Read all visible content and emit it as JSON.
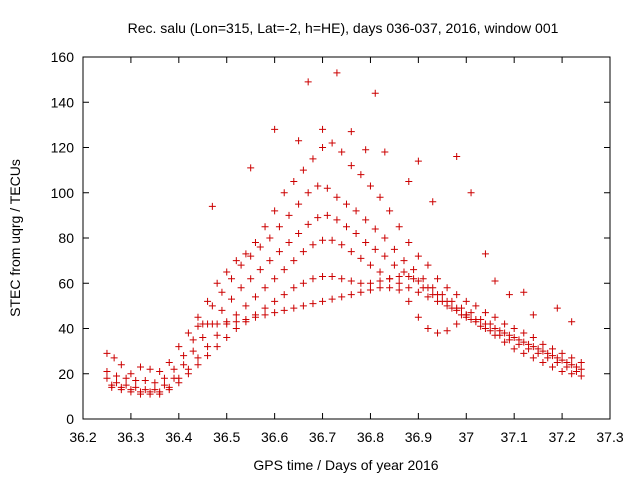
{
  "chart_data": {
    "type": "scatter",
    "title": "Rec. salu (Lon=315, Lat=-2, h=HE), days 036-037, 2016, window 001",
    "xlabel": "GPS time / Days of year 2016",
    "ylabel": "STEC from uqrg / TECUs",
    "xlim": [
      36.2,
      37.3
    ],
    "ylim": [
      0,
      160
    ],
    "grid": false,
    "legend": "none",
    "marker": "+",
    "color": "#cc0000",
    "x_ticks": [
      "36.2",
      "36.3",
      "36.4",
      "36.5",
      "36.6",
      "36.7",
      "36.8",
      "36.9",
      "37",
      "37.1",
      "37.2",
      "37.3"
    ],
    "y_ticks": [
      "0",
      "20",
      "40",
      "60",
      "80",
      "100",
      "120",
      "140",
      "160"
    ],
    "series": [
      {
        "points": [
          [
            36.25,
            29
          ],
          [
            36.265,
            27
          ],
          [
            36.28,
            24
          ],
          [
            36.3,
            20
          ],
          [
            36.32,
            23
          ],
          [
            36.34,
            22
          ],
          [
            36.36,
            21
          ],
          [
            36.38,
            25
          ],
          [
            36.4,
            32
          ],
          [
            36.42,
            38
          ],
          [
            36.44,
            45
          ],
          [
            36.46,
            52
          ],
          [
            36.48,
            60
          ],
          [
            36.5,
            65
          ],
          [
            36.52,
            70
          ],
          [
            36.54,
            73
          ],
          [
            36.56,
            78
          ],
          [
            36.58,
            85
          ],
          [
            36.6,
            92
          ],
          [
            36.62,
            100
          ],
          [
            36.64,
            105
          ],
          [
            36.66,
            110
          ],
          [
            36.68,
            115
          ],
          [
            36.7,
            120
          ],
          [
            36.72,
            122
          ],
          [
            36.74,
            118
          ],
          [
            36.76,
            112
          ],
          [
            36.78,
            108
          ],
          [
            36.8,
            103
          ],
          [
            36.82,
            98
          ],
          [
            36.84,
            92
          ],
          [
            36.86,
            85
          ],
          [
            36.88,
            78
          ],
          [
            36.9,
            72
          ],
          [
            36.92,
            68
          ],
          [
            36.94,
            62
          ],
          [
            36.96,
            58
          ],
          [
            36.98,
            55
          ],
          [
            37.0,
            52
          ],
          [
            37.02,
            50
          ],
          [
            37.04,
            47
          ],
          [
            37.06,
            45
          ],
          [
            37.08,
            42
          ],
          [
            37.1,
            40
          ],
          [
            37.12,
            38
          ],
          [
            37.14,
            36
          ],
          [
            37.16,
            33
          ],
          [
            37.18,
            31
          ],
          [
            37.2,
            29
          ],
          [
            37.22,
            27
          ],
          [
            37.24,
            25
          ]
        ]
      },
      {
        "points": [
          [
            36.25,
            21
          ],
          [
            36.27,
            19
          ],
          [
            36.29,
            18
          ],
          [
            36.31,
            17
          ],
          [
            36.33,
            17
          ],
          [
            36.35,
            16
          ],
          [
            36.37,
            18
          ],
          [
            36.39,
            22
          ],
          [
            36.41,
            28
          ],
          [
            36.43,
            35
          ],
          [
            36.45,
            42
          ],
          [
            36.47,
            50
          ],
          [
            36.49,
            56
          ],
          [
            36.51,
            62
          ],
          [
            36.53,
            68
          ],
          [
            36.55,
            72
          ],
          [
            36.57,
            76
          ],
          [
            36.59,
            80
          ],
          [
            36.61,
            85
          ],
          [
            36.63,
            90
          ],
          [
            36.65,
            95
          ],
          [
            36.67,
            100
          ],
          [
            36.69,
            103
          ],
          [
            36.71,
            102
          ],
          [
            36.73,
            98
          ],
          [
            36.75,
            95
          ],
          [
            36.77,
            92
          ],
          [
            36.79,
            88
          ],
          [
            36.81,
            84
          ],
          [
            36.83,
            80
          ],
          [
            36.85,
            75
          ],
          [
            36.87,
            70
          ],
          [
            36.89,
            66
          ],
          [
            36.91,
            62
          ],
          [
            36.93,
            58
          ],
          [
            36.95,
            55
          ],
          [
            36.97,
            52
          ],
          [
            36.99,
            49
          ],
          [
            37.01,
            47
          ],
          [
            37.03,
            44
          ],
          [
            37.05,
            42
          ],
          [
            37.07,
            39
          ],
          [
            37.09,
            37
          ],
          [
            37.11,
            35
          ],
          [
            37.13,
            33
          ],
          [
            37.15,
            31
          ],
          [
            37.17,
            29
          ],
          [
            37.19,
            27
          ],
          [
            37.21,
            25
          ],
          [
            37.23,
            23
          ]
        ]
      },
      {
        "points": [
          [
            36.25,
            18
          ],
          [
            36.27,
            16
          ],
          [
            36.29,
            15
          ],
          [
            36.31,
            14
          ],
          [
            36.33,
            13
          ],
          [
            36.35,
            13
          ],
          [
            36.37,
            15
          ],
          [
            36.39,
            18
          ],
          [
            36.41,
            24
          ],
          [
            36.43,
            30
          ],
          [
            36.45,
            36
          ],
          [
            36.47,
            42
          ],
          [
            36.49,
            48
          ],
          [
            36.51,
            53
          ],
          [
            36.53,
            58
          ],
          [
            36.55,
            62
          ],
          [
            36.57,
            66
          ],
          [
            36.59,
            70
          ],
          [
            36.61,
            74
          ],
          [
            36.63,
            78
          ],
          [
            36.65,
            82
          ],
          [
            36.67,
            86
          ],
          [
            36.69,
            89
          ],
          [
            36.71,
            90
          ],
          [
            36.73,
            88
          ],
          [
            36.75,
            85
          ],
          [
            36.77,
            82
          ],
          [
            36.79,
            78
          ],
          [
            36.81,
            75
          ],
          [
            36.83,
            72
          ],
          [
            36.85,
            68
          ],
          [
            36.87,
            65
          ],
          [
            36.89,
            62
          ],
          [
            36.91,
            58
          ],
          [
            36.93,
            55
          ],
          [
            36.95,
            52
          ],
          [
            36.97,
            49
          ],
          [
            36.99,
            46
          ],
          [
            37.01,
            44
          ],
          [
            37.03,
            41
          ],
          [
            37.05,
            39
          ],
          [
            37.07,
            37
          ],
          [
            37.09,
            35
          ],
          [
            37.11,
            33
          ],
          [
            37.13,
            31
          ],
          [
            37.15,
            29
          ],
          [
            37.17,
            27
          ],
          [
            37.19,
            25
          ],
          [
            37.21,
            23
          ],
          [
            37.23,
            21
          ]
        ]
      },
      {
        "points": [
          [
            36.26,
            15
          ],
          [
            36.28,
            14
          ],
          [
            36.3,
            13
          ],
          [
            36.32,
            12
          ],
          [
            36.34,
            12
          ],
          [
            36.36,
            12
          ],
          [
            36.38,
            14
          ],
          [
            36.4,
            18
          ],
          [
            36.42,
            22
          ],
          [
            36.44,
            27
          ],
          [
            36.46,
            32
          ],
          [
            36.48,
            37
          ],
          [
            36.5,
            42
          ],
          [
            36.52,
            46
          ],
          [
            36.54,
            50
          ],
          [
            36.56,
            54
          ],
          [
            36.58,
            58
          ],
          [
            36.6,
            62
          ],
          [
            36.62,
            66
          ],
          [
            36.64,
            70
          ],
          [
            36.66,
            74
          ],
          [
            36.68,
            77
          ],
          [
            36.7,
            79
          ],
          [
            36.72,
            79
          ],
          [
            36.74,
            77
          ],
          [
            36.76,
            74
          ],
          [
            36.78,
            71
          ],
          [
            36.8,
            68
          ],
          [
            36.82,
            65
          ],
          [
            36.84,
            62
          ],
          [
            36.86,
            60
          ],
          [
            36.88,
            58
          ],
          [
            36.9,
            56
          ],
          [
            36.92,
            54
          ],
          [
            36.94,
            52
          ],
          [
            36.96,
            50
          ],
          [
            36.98,
            48
          ],
          [
            37.0,
            46
          ],
          [
            37.02,
            44
          ],
          [
            37.04,
            42
          ],
          [
            37.06,
            40
          ],
          [
            37.08,
            38
          ],
          [
            37.1,
            36
          ],
          [
            37.12,
            34
          ],
          [
            37.14,
            32
          ],
          [
            37.16,
            30
          ],
          [
            37.18,
            28
          ],
          [
            37.2,
            26
          ],
          [
            37.22,
            24
          ],
          [
            37.24,
            22
          ]
        ]
      },
      {
        "points": [
          [
            36.26,
            14
          ],
          [
            36.28,
            13
          ],
          [
            36.3,
            12
          ],
          [
            36.32,
            11
          ],
          [
            36.34,
            11
          ],
          [
            36.36,
            11
          ],
          [
            36.38,
            13
          ],
          [
            36.4,
            16
          ],
          [
            36.42,
            20
          ],
          [
            36.44,
            24
          ],
          [
            36.46,
            28
          ],
          [
            36.48,
            32
          ],
          [
            36.5,
            36
          ],
          [
            36.52,
            40
          ],
          [
            36.54,
            43
          ],
          [
            36.56,
            46
          ],
          [
            36.58,
            49
          ],
          [
            36.6,
            52
          ],
          [
            36.62,
            55
          ],
          [
            36.64,
            58
          ],
          [
            36.66,
            60
          ],
          [
            36.68,
            62
          ],
          [
            36.7,
            63
          ],
          [
            36.72,
            63
          ],
          [
            36.74,
            62
          ],
          [
            36.76,
            61
          ],
          [
            36.78,
            60
          ],
          [
            36.8,
            60
          ],
          [
            36.82,
            61
          ],
          [
            36.84,
            62
          ],
          [
            36.86,
            63
          ],
          [
            36.88,
            63
          ],
          [
            36.9,
            61
          ],
          [
            36.92,
            58
          ],
          [
            36.94,
            55
          ],
          [
            36.96,
            52
          ],
          [
            36.98,
            49
          ],
          [
            37.0,
            46
          ],
          [
            37.02,
            43
          ],
          [
            37.04,
            40
          ],
          [
            37.06,
            37
          ],
          [
            37.08,
            34
          ],
          [
            37.1,
            31
          ],
          [
            37.12,
            29
          ],
          [
            37.14,
            27
          ],
          [
            37.16,
            25
          ],
          [
            37.18,
            23
          ],
          [
            37.2,
            21
          ],
          [
            37.22,
            20
          ],
          [
            37.24,
            19
          ]
        ]
      },
      {
        "points": [
          [
            36.44,
            41
          ],
          [
            36.46,
            42
          ],
          [
            36.48,
            42
          ],
          [
            36.5,
            43
          ],
          [
            36.52,
            43
          ],
          [
            36.54,
            44
          ],
          [
            36.56,
            45
          ],
          [
            36.58,
            46
          ],
          [
            36.6,
            47
          ],
          [
            36.62,
            48
          ],
          [
            36.64,
            49
          ],
          [
            36.66,
            50
          ],
          [
            36.68,
            51
          ],
          [
            36.7,
            52
          ],
          [
            36.72,
            53
          ],
          [
            36.74,
            54
          ],
          [
            36.76,
            55
          ],
          [
            36.78,
            56
          ],
          [
            36.8,
            57
          ],
          [
            36.82,
            58
          ],
          [
            36.84,
            58
          ],
          [
            36.86,
            57
          ],
          [
            36.88,
            52
          ],
          [
            36.9,
            45
          ],
          [
            36.92,
            40
          ],
          [
            36.94,
            38
          ],
          [
            36.96,
            39
          ],
          [
            36.98,
            42
          ],
          [
            37.0,
            45
          ]
        ]
      },
      {
        "points": [
          [
            36.47,
            94
          ],
          [
            36.55,
            111
          ],
          [
            36.6,
            128
          ],
          [
            36.65,
            123
          ],
          [
            36.67,
            149
          ],
          [
            36.7,
            128
          ],
          [
            36.73,
            153
          ],
          [
            36.76,
            127
          ],
          [
            36.79,
            119
          ],
          [
            36.81,
            144
          ],
          [
            36.83,
            118
          ],
          [
            36.88,
            105
          ],
          [
            36.9,
            114
          ],
          [
            36.93,
            96
          ],
          [
            36.98,
            116
          ],
          [
            37.01,
            100
          ],
          [
            37.04,
            73
          ],
          [
            37.06,
            61
          ],
          [
            37.09,
            55
          ],
          [
            37.12,
            56
          ],
          [
            37.14,
            46
          ],
          [
            37.19,
            49
          ],
          [
            37.22,
            43
          ]
        ]
      }
    ]
  }
}
